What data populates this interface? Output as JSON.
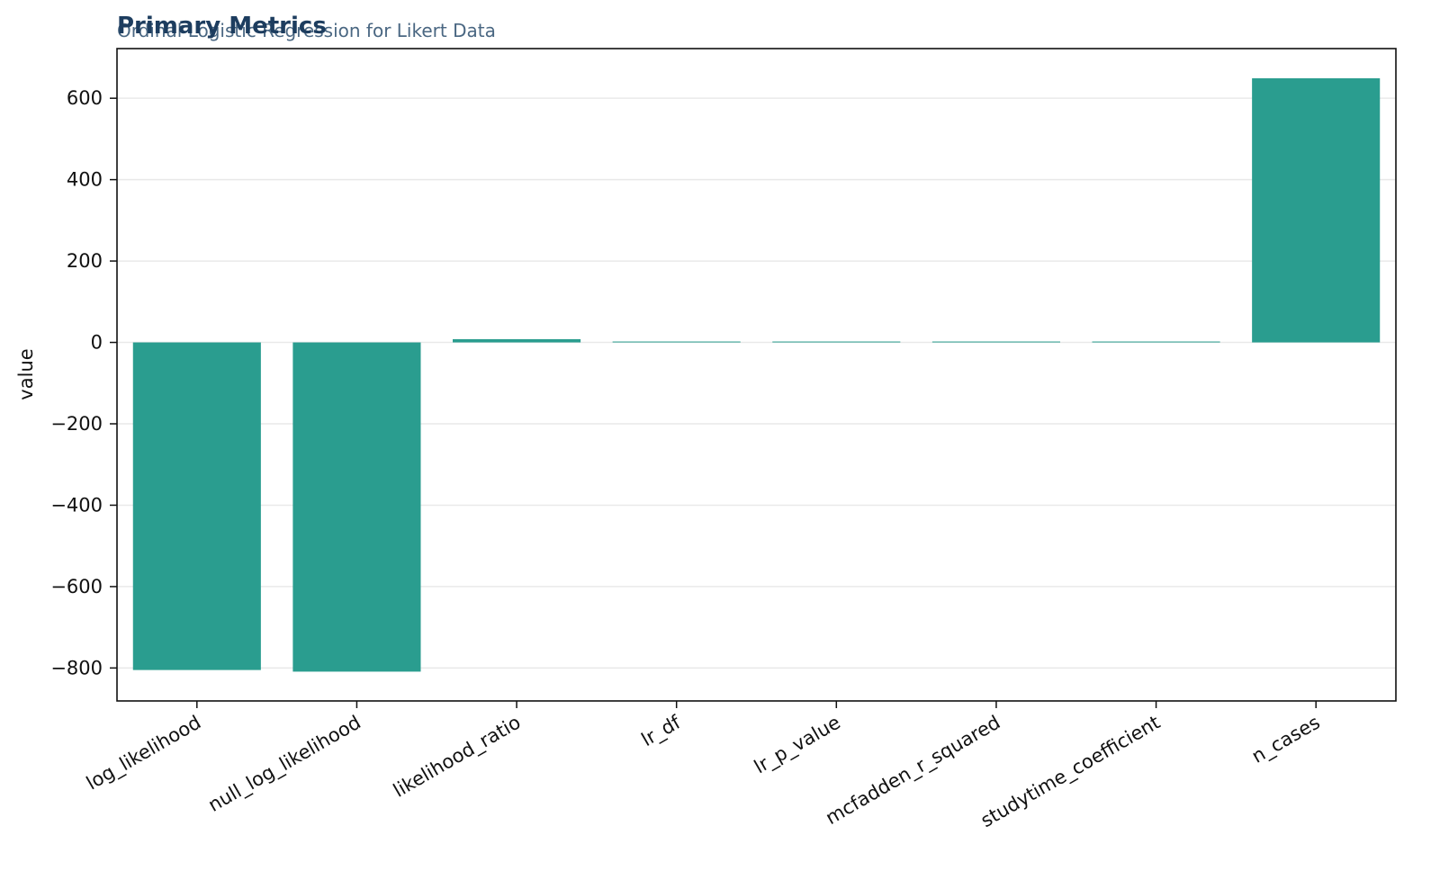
{
  "colors": {
    "bar": "#2a9d8f",
    "title": "#1d3d5f",
    "subtitle": "#4a6782",
    "grid": "#e9e9e9",
    "axis": "#111111"
  },
  "chart_data": {
    "type": "bar",
    "title": "Primary Metrics",
    "subtitle": "Ordinal Logistic Regression for Likert Data",
    "xlabel": "",
    "ylabel": "value",
    "categories": [
      "log_likelihood",
      "null_log_likelihood",
      "likelihood_ratio",
      "lr_df",
      "lr_p_value",
      "mcfadden_r_squared",
      "studytime_coefficient",
      "n_cases"
    ],
    "values": [
      -805,
      -809,
      8,
      1,
      0.005,
      0.005,
      0.4,
      649
    ],
    "ylim": [
      -881,
      722
    ],
    "yticks": [
      -800,
      -600,
      -400,
      -200,
      0,
      200,
      400,
      600
    ],
    "ytick_labels": [
      "−800",
      "−600",
      "−400",
      "−200",
      "0",
      "200",
      "400",
      "600"
    ],
    "grid": "horizontal",
    "legend": "none"
  }
}
